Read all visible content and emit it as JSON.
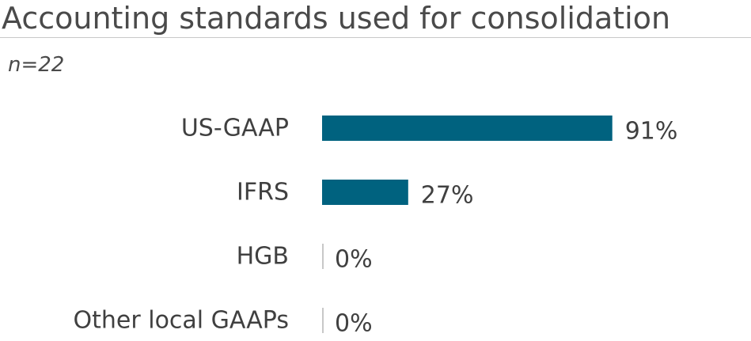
{
  "header": {
    "title": "Accounting standards used for consolidation",
    "subtitle": "n=22"
  },
  "colors": {
    "bar": "#00627f",
    "zero_tick": "#c8c8c8"
  },
  "chart_data": {
    "type": "bar",
    "orientation": "horizontal",
    "title": "Accounting standards used for consolidation",
    "subtitle": "n=22",
    "categories": [
      "US-GAAP",
      "IFRS",
      "HGB",
      "Other local GAAPs"
    ],
    "values": [
      91,
      27,
      0,
      0
    ],
    "value_labels": [
      "91%",
      "27%",
      "0%",
      "0%"
    ],
    "unit": "%",
    "xlim": [
      0,
      100
    ],
    "grid": false,
    "legend": "none"
  }
}
